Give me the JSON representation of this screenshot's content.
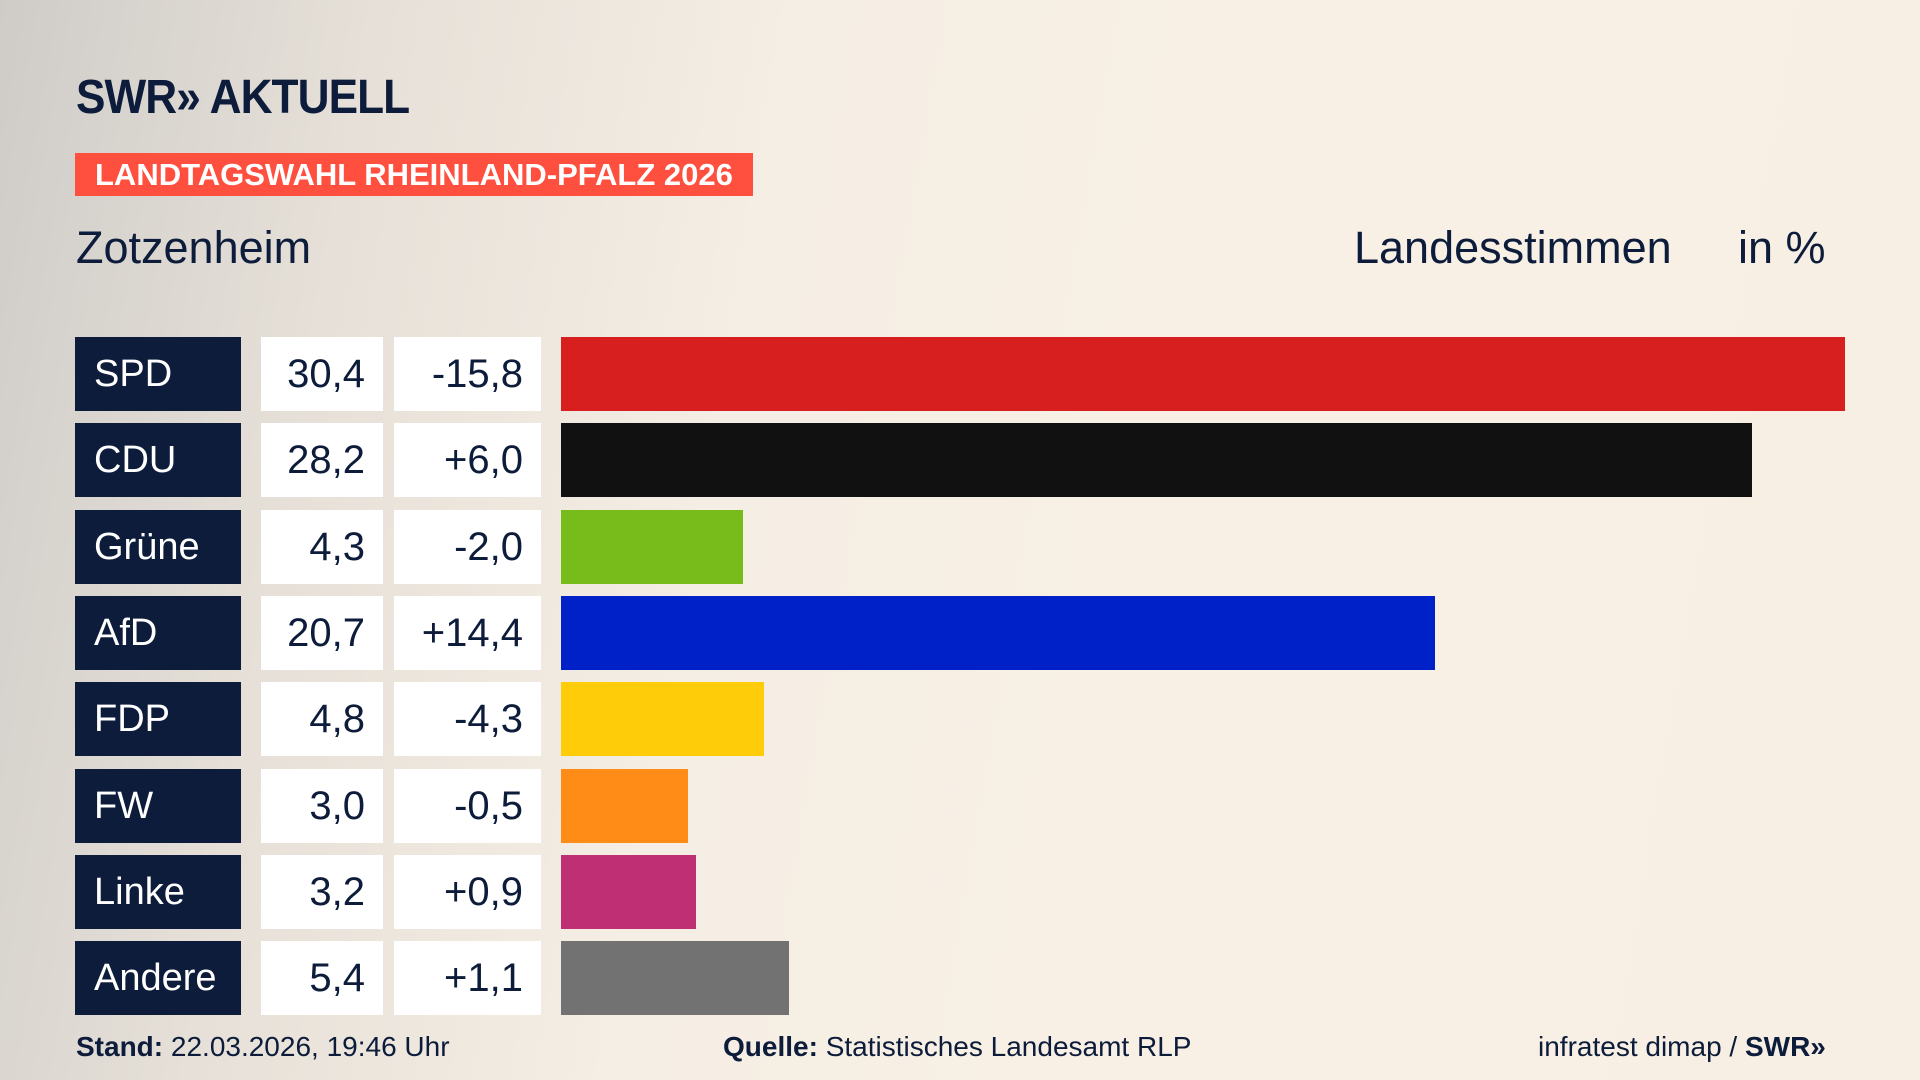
{
  "header": {
    "logo": "SWR» AKTUELL",
    "banner": "LANDTAGSWAHL RHEINLAND-PFALZ 2026",
    "place": "Zotzenheim",
    "measure": "Landesstimmen",
    "unit": "in %"
  },
  "chart_data": {
    "type": "bar",
    "orientation": "horizontal",
    "title": "Zotzenheim",
    "ylabel": "Landesstimmen in %",
    "categories": [
      "SPD",
      "CDU",
      "Grüne",
      "AfD",
      "FDP",
      "FW",
      "Linke",
      "Andere"
    ],
    "values": [
      30.4,
      28.2,
      4.3,
      20.7,
      4.8,
      3.0,
      3.2,
      5.4
    ],
    "values_label": [
      "30,4",
      "28,2",
      "4,3",
      "20,7",
      "4,8",
      "3,0",
      "3,2",
      "5,4"
    ],
    "diff": [
      -15.8,
      6.0,
      -2.0,
      14.4,
      -4.3,
      -0.5,
      0.9,
      1.1
    ],
    "diff_label": [
      "-15,8",
      "+6,0",
      "-2,0",
      "+14,4",
      "-4,3",
      "-0,5",
      "+0,9",
      "+1,1"
    ],
    "colors": [
      "#d81f20",
      "#111111",
      "#78bc1b",
      "#0021c7",
      "#ffcc0a",
      "#ff8c17",
      "#be2f73",
      "#727272"
    ],
    "xlim": [
      0,
      30.4
    ],
    "grid": false
  },
  "footer": {
    "stand_label": "Stand:",
    "stand": "22.03.2026, 19:46 Uhr",
    "source_label": "Quelle:",
    "source": "Statistisches Landesamt RLP",
    "credit": "infratest dimap /",
    "credit_logo": "SWR»"
  }
}
